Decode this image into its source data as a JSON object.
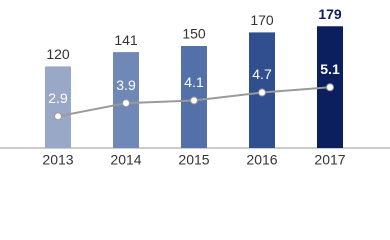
{
  "chart_data": {
    "type": "bar_line",
    "categories": [
      "2013",
      "2014",
      "2015",
      "2016",
      "2017"
    ],
    "values": [
      120,
      141,
      150,
      170,
      179
    ],
    "colors": [
      "#9aa8c8",
      "#7088b6",
      "#5470a8",
      "#314f8e",
      "#0b1f5e"
    ],
    "label_colors": [
      "#333333",
      "#333333",
      "#333333",
      "#333333",
      "#0b1f5e"
    ],
    "label_weights": [
      "normal",
      "normal",
      "normal",
      "normal",
      "bold"
    ],
    "ylim": [
      0,
      200
    ],
    "line": {
      "values": [
        2.9,
        3.9,
        4.1,
        4.7,
        5.1
      ],
      "color": "#9a9a9a",
      "label_color": "#ffffff",
      "label_weights": [
        "normal",
        "normal",
        "normal",
        "normal",
        "bold"
      ]
    },
    "y2lim": [
      0.5,
      10.8
    ]
  }
}
